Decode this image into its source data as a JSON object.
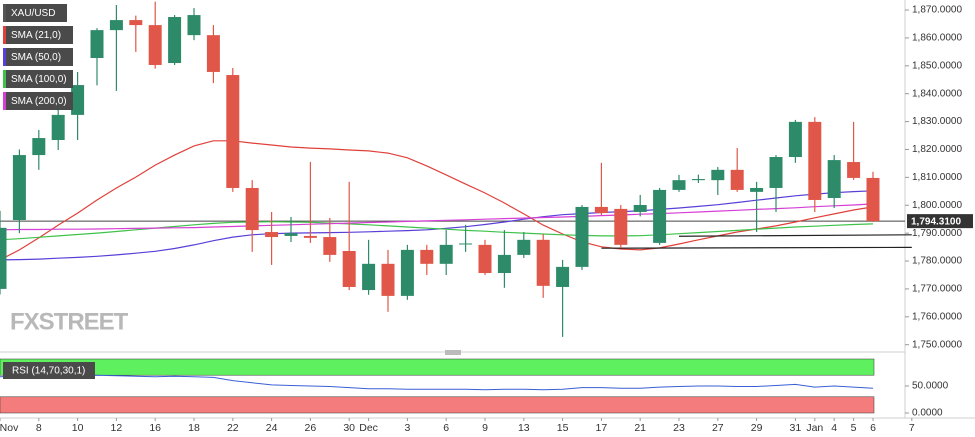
{
  "chart_data": [
    {
      "type": "candlestick",
      "categories": [
        "Nov",
        null,
        "8",
        null,
        "10",
        null,
        "12",
        null,
        "16",
        null,
        "18",
        null,
        "22",
        null,
        "24",
        null,
        "26",
        null,
        "30",
        "Dec",
        null,
        "3",
        null,
        "6",
        null,
        "9",
        null,
        "13",
        null,
        "15",
        null,
        "17",
        null,
        "21",
        null,
        "23",
        null,
        "27",
        null,
        "29",
        null,
        "31",
        "Jan",
        "4",
        "5",
        "6",
        null,
        "7"
      ],
      "series": [
        {
          "name": "XAU/USD",
          "color": "#555555",
          "up_color": "#2e8b6a",
          "down_color": "#e0574a",
          "open": [
            1770,
            1794.7,
            1818,
            1823.4,
            1832.4,
            1852.8,
            1862.8,
            1866.4,
            1864.6,
            1851,
            1861,
            1861,
            1846.7,
            1806.2,
            1790.4,
            1789,
            1789,
            1788.6,
            1783.6,
            1769.6,
            1779,
            1767.5,
            1784,
            1779,
            1786.1,
            1785.8,
            1775.7,
            1782.2,
            1787.6,
            1770.7,
            1777.9,
            1799.4,
            1798.7,
            1797.6,
            1786.5,
            1805.5,
            1809,
            1809,
            1812.7,
            1804.8,
            1806.2,
            1817.3,
            1829.9,
            1802.6,
            1815.5,
            1809.8,
            null,
            null
          ],
          "high": [
            1798,
            1820,
            1827,
            1835,
            1847.8,
            1863.5,
            1871.8,
            1868,
            1873,
            1868.2,
            1870.7,
            1864.6,
            1849.2,
            1809,
            1797.6,
            1795.8,
            1815.5,
            1795.5,
            1808.4,
            1787.6,
            1784,
            1785.8,
            1785.8,
            1791.1,
            1793,
            1787.6,
            1791.1,
            1790.4,
            1789.7,
            1780.4,
            1800.1,
            1815.2,
            1800.1,
            1803.7,
            1806.2,
            1810.9,
            1811,
            1813.7,
            1820.5,
            1808.4,
            1818,
            1830.6,
            1831.6,
            1818,
            1829.9,
            1812,
            null,
            null
          ],
          "low": [
            1768,
            1790,
            1812.7,
            1819.8,
            1823.4,
            1843,
            1841,
            1855,
            1849,
            1850.3,
            1859.2,
            1843.8,
            1804.8,
            1783.3,
            1778.6,
            1786.8,
            1786.5,
            1779.7,
            1769.6,
            1767.9,
            1761.8,
            1766.1,
            1775,
            1775,
            1783.3,
            1775,
            1770.4,
            1781.1,
            1766.8,
            1752.8,
            1776.8,
            1796.5,
            1784.7,
            1796,
            1785.8,
            1804.8,
            1808,
            1803.7,
            1804.8,
            1790.4,
            1797.6,
            1815.2,
            1797.6,
            1799,
            1809.1,
            1794,
            null,
            null
          ],
          "close": [
            1791.9,
            1818,
            1824.1,
            1832.4,
            1843.1,
            1862.8,
            1866.4,
            1864.6,
            1850.3,
            1867.5,
            1868.2,
            1847.8,
            1806.2,
            1791.1,
            1788.6,
            1790,
            1788.3,
            1782.2,
            1770.7,
            1779,
            1767.5,
            1784,
            1779,
            1785.8,
            1786.3,
            1775.7,
            1782.2,
            1787.6,
            1771.1,
            1777.9,
            1799.4,
            1797.2,
            1785.8,
            1800.1,
            1805.5,
            1809,
            1809.4,
            1812.7,
            1805.5,
            1806.2,
            1817.3,
            1829.9,
            1801.9,
            1816.2,
            1809.8,
            1794.31,
            null,
            null
          ]
        },
        {
          "name": "SMA (21,0)",
          "color": "#e0403a",
          "type": "line",
          "values": [
            1780.4,
            1784.0,
            1788.3,
            1792.9,
            1797.2,
            1801.9,
            1806.2,
            1810.1,
            1814.4,
            1818.0,
            1821.3,
            1823.1,
            1823.1,
            1822.3,
            1821.6,
            1820.9,
            1820.5,
            1820.2,
            1819.8,
            1819.5,
            1818.7,
            1817.0,
            1814.1,
            1810.9,
            1807.6,
            1804.4,
            1800.8,
            1796.9,
            1792.9,
            1789.7,
            1786.9,
            1785.1,
            1784.3,
            1784.0,
            1784.7,
            1786.1,
            1787.6,
            1789.0,
            1790.4,
            1791.5,
            1792.6,
            1794.0,
            1795.5,
            1796.9,
            1798.3,
            1799.4,
            null,
            null
          ]
        },
        {
          "name": "SMA (50,0)",
          "color": "#5a3ed8",
          "type": "line",
          "values": [
            1780.4,
            1780.5,
            1780.7,
            1781.0,
            1781.3,
            1781.7,
            1782.2,
            1782.8,
            1783.5,
            1784.5,
            1785.8,
            1787.3,
            1788.6,
            1789.4,
            1789.8,
            1790.0,
            1790.1,
            1790.2,
            1790.3,
            1790.5,
            1790.7,
            1790.9,
            1791.2,
            1791.7,
            1792.3,
            1793.1,
            1794.0,
            1795.0,
            1795.9,
            1796.6,
            1797.0,
            1797.4,
            1797.7,
            1798.0,
            1798.5,
            1799.0,
            1799.6,
            1800.2,
            1801.0,
            1801.8,
            1802.6,
            1803.4,
            1804.0,
            1804.5,
            1804.9,
            1805.2,
            null,
            null
          ]
        },
        {
          "name": "SMA (100,0)",
          "color": "#3fc24a",
          "type": "line",
          "values": [
            1787.6,
            1788.0,
            1788.5,
            1789.0,
            1789.5,
            1790.0,
            1790.6,
            1791.2,
            1791.8,
            1792.4,
            1793.0,
            1793.5,
            1793.9,
            1794.0,
            1794.1,
            1794.0,
            1793.9,
            1793.6,
            1793.3,
            1793.0,
            1792.6,
            1792.2,
            1791.8,
            1791.4,
            1791.0,
            1790.7,
            1790.3,
            1790.0,
            1789.7,
            1789.4,
            1789.2,
            1789.0,
            1789.0,
            1789.1,
            1789.4,
            1789.8,
            1790.2,
            1790.6,
            1791.0,
            1791.4,
            1791.8,
            1792.2,
            1792.5,
            1792.8,
            1793.1,
            1793.3,
            null,
            null
          ]
        },
        {
          "name": "SMA (200,0)",
          "color": "#d63fd6",
          "type": "line",
          "values": [
            1791.2,
            1791.3,
            1791.3,
            1791.4,
            1791.4,
            1791.5,
            1791.6,
            1791.7,
            1791.8,
            1791.9,
            1792.0,
            1792.2,
            1792.4,
            1792.6,
            1792.8,
            1793.0,
            1793.2,
            1793.4,
            1793.6,
            1793.8,
            1794.0,
            1794.2,
            1794.4,
            1794.6,
            1794.8,
            1795.0,
            1795.2,
            1795.4,
            1795.6,
            1795.8,
            1796.0,
            1796.3,
            1796.5,
            1796.8,
            1797.0,
            1797.3,
            1797.6,
            1797.9,
            1798.2,
            1798.5,
            1798.8,
            1799.1,
            1799.5,
            1799.8,
            1800.1,
            1800.5,
            null,
            null
          ]
        }
      ],
      "trendlines": [
        {
          "x": [
            31,
            47
          ],
          "values": [
            1784.6,
            1784.9
          ],
          "color": "#222222"
        },
        {
          "x": [
            35,
            47
          ],
          "values": [
            1788.9,
            1789.4
          ],
          "color": "#222222"
        }
      ],
      "last_price": {
        "value": 1794.31,
        "label": "1,794.3100"
      },
      "ylim": [
        1748.1,
        1873.6
      ],
      "yticks": [
        {
          "value": 1750,
          "label": "1,750.0000"
        },
        {
          "value": 1760,
          "label": "1,760.0000"
        },
        {
          "value": 1770,
          "label": "1,770.0000"
        },
        {
          "value": 1780,
          "label": "1,780.0000"
        },
        {
          "value": 1790,
          "label": "1,790.0000"
        },
        {
          "value": 1800,
          "label": "1,800.0000"
        },
        {
          "value": 1810,
          "label": "1,810.0000"
        },
        {
          "value": 1820,
          "label": "1,820.0000"
        },
        {
          "value": 1830,
          "label": "1,830.0000"
        },
        {
          "value": 1840,
          "label": "1,840.0000"
        },
        {
          "value": 1850,
          "label": "1,850.0000"
        },
        {
          "value": 1860,
          "label": "1,860.0000"
        },
        {
          "value": 1870,
          "label": "1,870.0000"
        }
      ],
      "watermark": "FXSTREET"
    },
    {
      "type": "line",
      "title": "RSI (14,70,30,1)",
      "color": "#3a5fd6",
      "values": [
        67,
        68,
        69,
        69,
        69,
        70,
        69,
        68,
        67,
        68,
        67,
        66,
        60,
        56,
        52,
        51,
        50,
        49,
        47,
        45,
        45,
        44,
        44,
        44,
        44,
        43,
        44,
        44,
        43,
        44,
        47,
        47,
        46,
        46,
        48,
        49,
        50,
        50,
        49,
        49,
        51,
        53,
        48,
        50,
        48,
        46,
        null,
        null
      ],
      "zones": [
        {
          "from": 70,
          "to": 100,
          "color": "#5ef05e"
        },
        {
          "from": 0,
          "to": 30,
          "color": "#f47c7c"
        }
      ],
      "ylim": [
        0,
        100
      ],
      "yticks": [
        {
          "value": 50,
          "label": "50.0000"
        },
        {
          "value": 0,
          "label": "0.0000"
        }
      ]
    }
  ]
}
